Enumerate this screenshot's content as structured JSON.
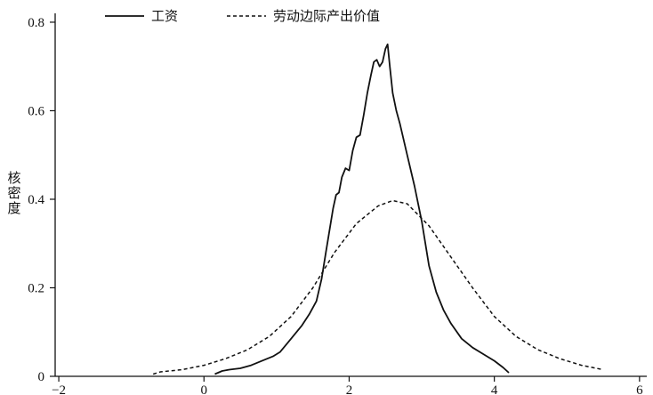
{
  "chart_data": {
    "type": "line",
    "title": "",
    "xlabel": "",
    "ylabel": "核密度",
    "xlim": [
      -2.05,
      6.1
    ],
    "ylim": [
      0,
      0.82
    ],
    "x_ticks": [
      -2,
      0,
      2,
      4,
      6
    ],
    "x_tick_labels": [
      "−2",
      "0",
      "2",
      "4",
      "6"
    ],
    "y_ticks": [
      0,
      0.2,
      0.4,
      0.6,
      0.8
    ],
    "y_tick_labels": [
      "0",
      "0.2",
      "0.4",
      "0.6",
      "0.8"
    ],
    "grid": false,
    "legend": {
      "position": "top",
      "orientation": "horizontal"
    },
    "series": [
      {
        "name": "工资",
        "style": "solid",
        "color": "#111111",
        "x": [
          0.15,
          0.25,
          0.35,
          0.5,
          0.65,
          0.8,
          0.95,
          1.05,
          1.15,
          1.25,
          1.35,
          1.45,
          1.55,
          1.62,
          1.68,
          1.73,
          1.78,
          1.82,
          1.86,
          1.9,
          1.95,
          2.0,
          2.05,
          2.1,
          2.15,
          2.2,
          2.25,
          2.3,
          2.34,
          2.38,
          2.42,
          2.46,
          2.5,
          2.53,
          2.56,
          2.6,
          2.65,
          2.7,
          2.8,
          2.9,
          3.0,
          3.1,
          3.2,
          3.3,
          3.4,
          3.55,
          3.7,
          3.85,
          4.0,
          4.12,
          4.2
        ],
        "y": [
          0.005,
          0.012,
          0.015,
          0.018,
          0.025,
          0.035,
          0.045,
          0.055,
          0.075,
          0.095,
          0.115,
          0.14,
          0.17,
          0.22,
          0.28,
          0.33,
          0.38,
          0.41,
          0.415,
          0.45,
          0.47,
          0.465,
          0.51,
          0.54,
          0.545,
          0.59,
          0.64,
          0.68,
          0.71,
          0.715,
          0.7,
          0.71,
          0.74,
          0.75,
          0.7,
          0.64,
          0.6,
          0.57,
          0.5,
          0.43,
          0.35,
          0.25,
          0.19,
          0.15,
          0.12,
          0.085,
          0.065,
          0.05,
          0.035,
          0.02,
          0.008
        ]
      },
      {
        "name": "劳动边际产出价值",
        "style": "dashed",
        "color": "#111111",
        "x": [
          -0.7,
          -0.6,
          -0.3,
          0.0,
          0.3,
          0.6,
          0.9,
          1.2,
          1.5,
          1.8,
          2.1,
          2.4,
          2.6,
          2.8,
          3.1,
          3.4,
          3.7,
          4.0,
          4.3,
          4.6,
          4.9,
          5.2,
          5.5
        ],
        "y": [
          0.005,
          0.01,
          0.015,
          0.025,
          0.04,
          0.06,
          0.09,
          0.135,
          0.2,
          0.28,
          0.345,
          0.385,
          0.397,
          0.39,
          0.34,
          0.27,
          0.2,
          0.135,
          0.09,
          0.06,
          0.04,
          0.025,
          0.015
        ]
      }
    ]
  }
}
